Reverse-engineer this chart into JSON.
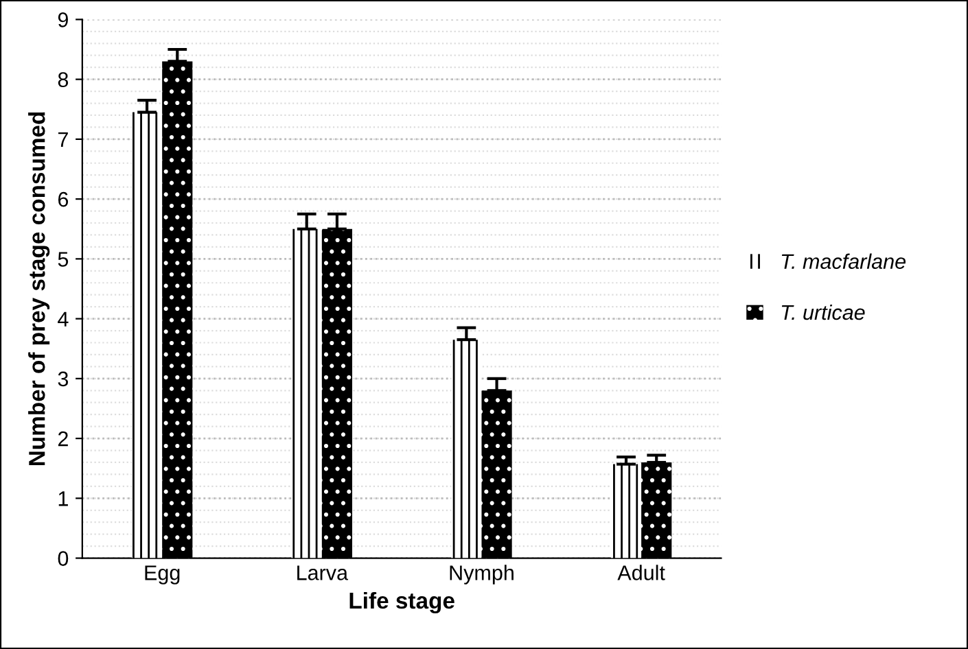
{
  "chart_data": {
    "type": "bar",
    "xlabel": "Life stage",
    "ylabel": "Number of prey stage consumed",
    "categories": [
      "Egg",
      "Larva",
      "Nymph",
      "Adult"
    ],
    "series": [
      {
        "name": "T. macfarlane",
        "color": "#000000",
        "values": [
          7.45,
          5.5,
          3.65,
          1.57
        ],
        "errors": [
          [
            7.45,
            7.65
          ],
          [
            5.5,
            5.75
          ],
          [
            3.65,
            3.85
          ],
          [
            1.57,
            1.69
          ]
        ]
      },
      {
        "name": "T. urticae",
        "color": "#000000",
        "values": [
          8.3,
          5.5,
          2.8,
          1.6
        ],
        "errors": [
          [
            8.3,
            8.5
          ],
          [
            5.5,
            5.75
          ],
          [
            2.8,
            3.0
          ],
          [
            1.6,
            1.72
          ]
        ]
      }
    ],
    "ylim": [
      0,
      9
    ],
    "yticks": [
      0,
      1,
      2,
      3,
      4,
      5,
      6,
      7,
      8,
      9
    ],
    "grid": "y",
    "legend": "right"
  }
}
